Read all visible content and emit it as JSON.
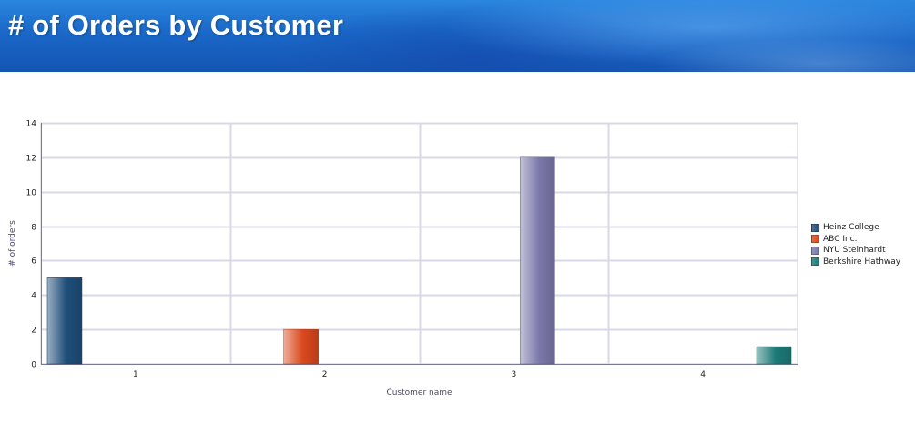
{
  "header": {
    "title": "# of Orders by Customer"
  },
  "chart_data": {
    "type": "bar",
    "title": "",
    "categories": [
      "1",
      "2",
      "3",
      "4"
    ],
    "xlabel": "Customer name",
    "ylabel": "# of orders",
    "ylim": [
      0,
      14
    ],
    "yticks": [
      0,
      2,
      4,
      6,
      8,
      10,
      12,
      14
    ],
    "grid": true,
    "legend_position": "right",
    "series": [
      {
        "name": "Heinz College",
        "values": [
          5,
          0,
          0,
          0
        ],
        "color": "#1f4e79"
      },
      {
        "name": "ABC Inc.",
        "values": [
          0,
          2,
          0,
          0
        ],
        "color": "#d9481c"
      },
      {
        "name": "NYU Steinhardt",
        "values": [
          0,
          0,
          12,
          0
        ],
        "color": "#7a78a8"
      },
      {
        "name": "Berkshire Hathway",
        "values": [
          0,
          0,
          0,
          1
        ],
        "color": "#1c7a78"
      }
    ]
  }
}
